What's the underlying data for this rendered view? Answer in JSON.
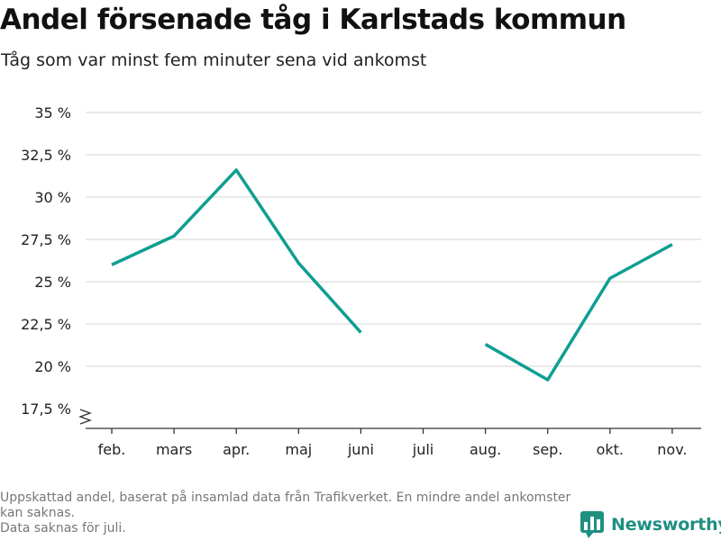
{
  "title": "Andel försenade tåg i Karlstads kommun",
  "subtitle": "Tåg som var minst fem minuter sena vid ankomst",
  "footnotes": [
    "Uppskattad andel, baserat på insamlad data från Trafikverket. En mindre andel ankomster kan saknas.",
    "Data saknas för juli."
  ],
  "brand": {
    "name": "Newsworthy",
    "logo_icon": "bar-chart-speech-bubble-icon"
  },
  "colors": {
    "line": "#0f9e92",
    "grid": "#dddddd",
    "axis": "#333333",
    "brand": "#1f8f82"
  },
  "chart_data": {
    "type": "line",
    "title": "Andel försenade tåg i Karlstads kommun",
    "subtitle": "Tåg som var minst fem minuter sena vid ankomst",
    "categories": [
      "feb.",
      "mars",
      "apr.",
      "maj",
      "juni",
      "juli",
      "aug.",
      "sep.",
      "okt.",
      "nov."
    ],
    "series": [
      {
        "values": [
          26.0,
          27.7,
          31.6,
          26.1,
          22.0,
          null,
          21.3,
          19.2,
          25.2,
          27.2
        ]
      }
    ],
    "yticks": [
      17.5,
      20,
      22.5,
      25,
      27.5,
      30,
      32.5,
      35
    ],
    "ytick_labels": [
      "17,5 %",
      "20 %",
      "22,5 %",
      "25 %",
      "27,5 %",
      "30 %",
      "32,5 %",
      "35 %"
    ],
    "ylim": [
      17.5,
      35
    ],
    "y_axis_break": true,
    "grid": "horizontal",
    "legend": "none"
  }
}
